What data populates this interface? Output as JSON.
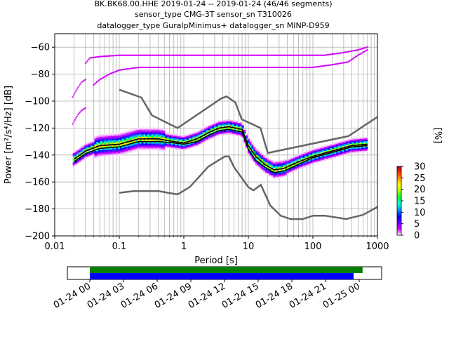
{
  "chart_data": {
    "type": "heatmap",
    "title_lines": [
      "BK.BK68.00.HHE   2019-01-24 -- 2019-01-24  (46/46 segments)",
      "sensor_type CMG-3T sensor_sn T310026",
      "datalogger_type GuralpMinimus+ datalogger_sn MINP-D959"
    ],
    "xlabel": "Period [s]",
    "ylabel": "Power [m²/s⁴/Hz] [dB]",
    "x_scale": "log",
    "xlim": [
      0.01,
      1000
    ],
    "ylim": [
      -200,
      -50
    ],
    "x_ticks": [
      {
        "value": 0.01,
        "label": "0.01"
      },
      {
        "value": 0.1,
        "label": "0.1"
      },
      {
        "value": 1,
        "label": "1"
      },
      {
        "value": 10,
        "label": "10"
      },
      {
        "value": 100,
        "label": "100"
      },
      {
        "value": 1000,
        "label": "1000"
      }
    ],
    "y_ticks": [
      {
        "value": -60,
        "label": "−60"
      },
      {
        "value": -80,
        "label": "−80"
      },
      {
        "value": -100,
        "label": "−100"
      },
      {
        "value": -120,
        "label": "−120"
      },
      {
        "value": -140,
        "label": "−140"
      },
      {
        "value": -160,
        "label": "−160"
      },
      {
        "value": -180,
        "label": "−180"
      },
      {
        "value": -200,
        "label": "−200"
      }
    ],
    "grid": true,
    "colorbar": {
      "label": "[%]",
      "range": [
        0,
        30
      ],
      "ticks": [
        {
          "value": 0,
          "label": "0"
        },
        {
          "value": 5,
          "label": "5"
        },
        {
          "value": 10,
          "label": "10"
        },
        {
          "value": 15,
          "label": "15"
        },
        {
          "value": 20,
          "label": "20"
        },
        {
          "value": 25,
          "label": "25"
        },
        {
          "value": 30,
          "label": "30"
        }
      ],
      "colors": [
        "#ffffff",
        "#d400ff",
        "#6a00ff",
        "#0000ff",
        "#0090ff",
        "#00ffe0",
        "#00ff40",
        "#a0ff00",
        "#ffff00",
        "#ffa000",
        "#ff3000",
        "#b00000"
      ]
    },
    "noise_models": {
      "color": "#666666",
      "high": [
        [
          0.1,
          -91.5
        ],
        [
          0.22,
          -97.4
        ],
        [
          0.32,
          -110.5
        ],
        [
          0.8,
          -120
        ],
        [
          3.8,
          -98
        ],
        [
          4.6,
          -96.5
        ],
        [
          6.3,
          -101
        ],
        [
          7.9,
          -113.5
        ],
        [
          15.4,
          -120
        ],
        [
          20,
          -138.5
        ],
        [
          354.8,
          -126
        ],
        [
          10000,
          -80.1
        ]
      ],
      "low": [
        [
          0.1,
          -168
        ],
        [
          0.17,
          -166.7
        ],
        [
          0.4,
          -166.7
        ],
        [
          0.8,
          -169.2
        ],
        [
          1.24,
          -163.7
        ],
        [
          2.4,
          -148.6
        ],
        [
          4.3,
          -141.1
        ],
        [
          5,
          -141.1
        ],
        [
          6,
          -149
        ],
        [
          10,
          -163.8
        ],
        [
          12,
          -166.2
        ],
        [
          15.6,
          -162.1
        ],
        [
          21.9,
          -177.5
        ],
        [
          31.6,
          -185
        ],
        [
          45,
          -187.5
        ],
        [
          70,
          -187.5
        ],
        [
          101,
          -185
        ],
        [
          154,
          -185
        ],
        [
          328,
          -187.5
        ],
        [
          600,
          -184.4
        ],
        [
          10000,
          -151.9
        ]
      ]
    },
    "mean_curve": {
      "color": "#000000",
      "points": [
        [
          0.02,
          -143
        ],
        [
          0.03,
          -137
        ],
        [
          0.05,
          -133
        ],
        [
          0.1,
          -132
        ],
        [
          0.2,
          -128
        ],
        [
          0.4,
          -128
        ],
        [
          0.7,
          -130
        ],
        [
          1,
          -131
        ],
        [
          1.6,
          -128
        ],
        [
          2.5,
          -123
        ],
        [
          3.5,
          -120
        ],
        [
          5,
          -119
        ],
        [
          8,
          -121
        ],
        [
          10,
          -133
        ],
        [
          13,
          -141
        ],
        [
          18,
          -147
        ],
        [
          25,
          -151
        ],
        [
          35,
          -150
        ],
        [
          60,
          -145
        ],
        [
          100,
          -141
        ],
        [
          200,
          -137
        ],
        [
          400,
          -133
        ],
        [
          700,
          -132
        ]
      ]
    },
    "mode_curve": {
      "color": "#000000",
      "points": [
        [
          0.02,
          -145
        ],
        [
          0.03,
          -139
        ],
        [
          0.05,
          -135
        ],
        [
          0.1,
          -134
        ],
        [
          0.2,
          -130
        ],
        [
          0.4,
          -130
        ],
        [
          0.7,
          -131
        ],
        [
          1,
          -132
        ],
        [
          1.6,
          -130
        ],
        [
          2.5,
          -125
        ],
        [
          3.5,
          -122
        ],
        [
          5,
          -121
        ],
        [
          8,
          -123
        ],
        [
          10,
          -136
        ],
        [
          13,
          -144
        ],
        [
          18,
          -149
        ],
        [
          25,
          -153
        ],
        [
          35,
          -152
        ],
        [
          60,
          -147
        ],
        [
          100,
          -142
        ],
        [
          200,
          -138
        ],
        [
          400,
          -134
        ],
        [
          700,
          -133
        ]
      ]
    },
    "outlier_bands": [
      {
        "points": [
          [
            0.03,
            -72
          ],
          [
            0.035,
            -68
          ],
          [
            0.05,
            -67
          ],
          [
            0.1,
            -66
          ],
          [
            0.5,
            -66
          ],
          [
            1,
            -66
          ],
          [
            10,
            -66
          ],
          [
            100,
            -66
          ],
          [
            150,
            -66
          ],
          [
            300,
            -64
          ],
          [
            500,
            -62
          ],
          [
            700,
            -60
          ]
        ]
      },
      {
        "points": [
          [
            0.04,
            -88
          ],
          [
            0.05,
            -84
          ],
          [
            0.07,
            -80
          ],
          [
            0.1,
            -77
          ],
          [
            0.2,
            -75
          ],
          [
            0.5,
            -75
          ],
          [
            1,
            -75
          ],
          [
            10,
            -75
          ],
          [
            100,
            -75
          ],
          [
            200,
            -73
          ],
          [
            350,
            -71
          ],
          [
            500,
            -66
          ],
          [
            700,
            -62
          ]
        ]
      },
      {
        "points": [
          [
            0.019,
            -97
          ],
          [
            0.021,
            -93
          ],
          [
            0.023,
            -90
          ],
          [
            0.026,
            -86
          ],
          [
            0.03,
            -84
          ]
        ]
      },
      {
        "points": [
          [
            0.019,
            -117
          ],
          [
            0.021,
            -113
          ],
          [
            0.023,
            -110
          ],
          [
            0.026,
            -107
          ],
          [
            0.03,
            -105
          ]
        ]
      }
    ]
  },
  "segment_bar": {
    "x_ticks": [
      "01-24 00",
      "01-24 03",
      "01-24 06",
      "01-24 09",
      "01-24 12",
      "01-24 15",
      "01-24 18",
      "01-24 21",
      "01-25 00"
    ],
    "range_hours": [
      -2,
      26
    ],
    "data_segments": [
      {
        "start": 0,
        "end": 24.3,
        "color": "#008000"
      }
    ],
    "used_segments": [
      {
        "start": 0,
        "end": 23.5,
        "color": "#0000ff"
      }
    ]
  }
}
